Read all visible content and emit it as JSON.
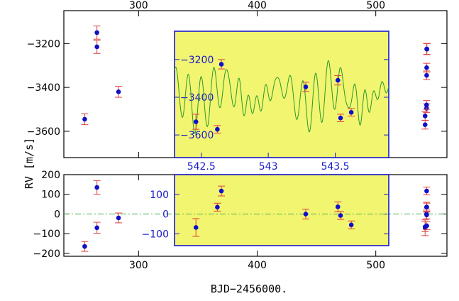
{
  "chart_data": {
    "type": "scatter",
    "xlabel": "BJD−2456000.",
    "ylabel": "RV [m/s]",
    "colors": {
      "points": "#1010c8",
      "errorbars": "#e04040",
      "model": "#2a9a2a",
      "zero_line": "#4caf50",
      "inset_bg": "#f2f570",
      "inset_frame": "#1a1acc"
    },
    "xlim": [
      237,
      560
    ],
    "top_panel": {
      "ylim": [
        -3720,
        -3050
      ],
      "x_ticks": [
        300,
        400,
        500
      ],
      "y_ticks": [
        -3600,
        -3400,
        -3200
      ],
      "x": [
        254.6,
        264.9,
        264.9,
        283.1,
        346.7,
        361.2,
        364.6,
        459.9,
        474.7,
        478.5,
        486.9,
        541.6,
        541.6,
        542.8,
        542.8,
        542.9,
        542.9,
        543.0,
        543.0,
        543.1
      ],
      "y": [
        -3545,
        -3215,
        -3150,
        -3420,
        -3530,
        -3570,
        -3225,
        -3345,
        -3310,
        -3510,
        -3480,
        -3570,
        -3530,
        -3495,
        -3480,
        -3345,
        -3310,
        -3225,
        -3225,
        -3225
      ],
      "err": [
        25,
        30,
        30,
        25,
        40,
        20,
        25,
        25,
        25,
        20,
        20,
        20,
        20,
        20,
        20,
        20,
        20,
        25,
        25,
        25
      ]
    },
    "bottom_panel": {
      "ylim": [
        -215,
        200
      ],
      "x_ticks": [
        300,
        400,
        500
      ],
      "y_ticks": [
        -200,
        -100,
        0,
        100,
        200
      ],
      "x": [
        254.6,
        264.9,
        264.9,
        283.1,
        346.7,
        361.2,
        364.6,
        459.9,
        474.7,
        478.5,
        486.9,
        541.6,
        541.6,
        542.8,
        542.8,
        542.9,
        542.9,
        543.0,
        543.0
      ],
      "y": [
        -165,
        -70,
        135,
        -20,
        -68,
        35,
        117,
        0,
        37,
        -7,
        -55,
        -65,
        -70,
        35,
        0,
        117,
        -5,
        35,
        -60
      ],
      "err": [
        25,
        28,
        35,
        25,
        45,
        20,
        25,
        25,
        25,
        20,
        20,
        25,
        40,
        25,
        25,
        20,
        20,
        20,
        20
      ]
    },
    "top_inset": {
      "xlim": [
        542.3,
        543.9
      ],
      "ylim": [
        -3720,
        -3050
      ],
      "x_ticks": [
        542.5,
        543.0,
        543.5
      ],
      "x_tick_labels": [
        "542.5",
        "543",
        "543.5"
      ],
      "y_ticks": [
        -3600,
        -3400,
        -3200
      ],
      "x": [
        542.46,
        542.62,
        542.65,
        543.28,
        543.52,
        543.54,
        543.62
      ],
      "y": [
        -3530,
        -3570,
        -3225,
        -3345,
        -3310,
        -3510,
        -3480
      ],
      "err": [
        40,
        20,
        25,
        25,
        25,
        20,
        20
      ]
    },
    "bottom_inset": {
      "xlim": [
        542.3,
        543.9
      ],
      "ylim": [
        -160,
        200
      ],
      "y_ticks": [
        -100,
        0,
        100
      ],
      "x": [
        542.46,
        542.62,
        542.65,
        543.28,
        543.52,
        543.54,
        543.62
      ],
      "y": [
        -68,
        35,
        117,
        0,
        37,
        -7,
        -55
      ],
      "err": [
        45,
        20,
        25,
        25,
        25,
        20,
        20
      ]
    }
  }
}
